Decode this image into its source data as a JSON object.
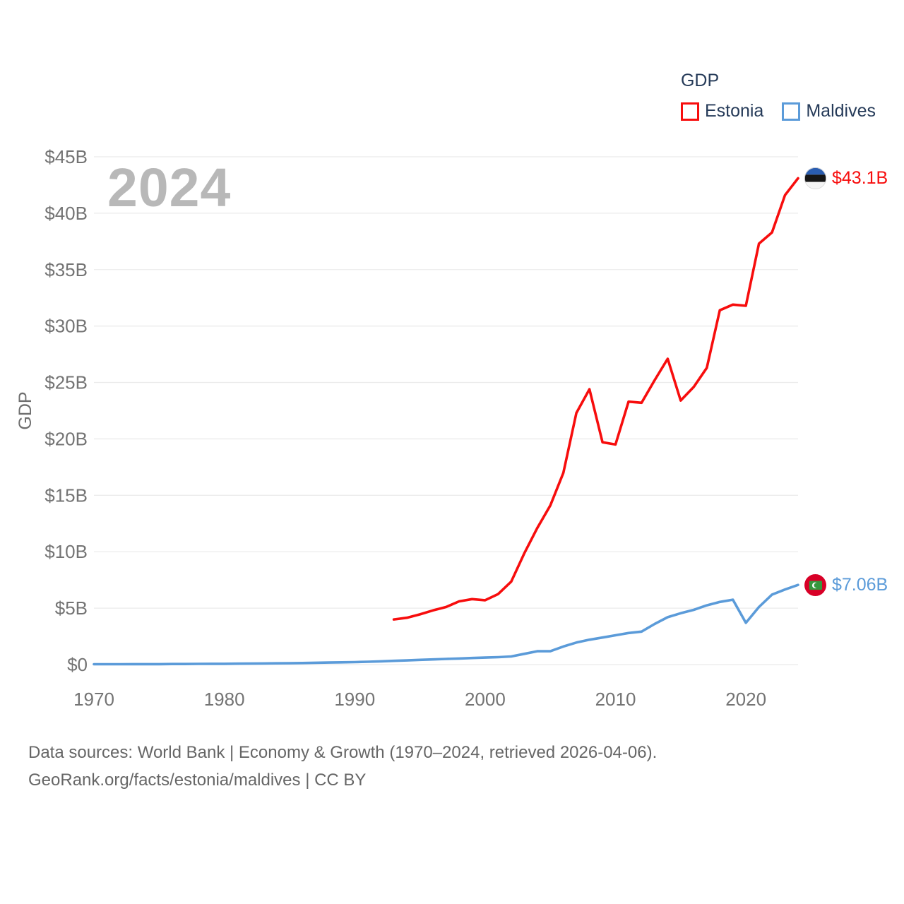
{
  "watermark": "2024",
  "legend": {
    "title": "GDP",
    "items": [
      {
        "label": "Estonia",
        "color": "#f70d0d"
      },
      {
        "label": "Maldives",
        "color": "#5b9bd9"
      }
    ]
  },
  "chart_data": {
    "type": "line",
    "title": "GDP",
    "ylabel": "GDP",
    "xlabel": "",
    "grid": "horizontal",
    "legend_position": "top-right",
    "x_range": [
      1970,
      2024
    ],
    "y_range": [
      0,
      45
    ],
    "y_ticks": [
      {
        "value": 0,
        "label": "$0"
      },
      {
        "value": 5,
        "label": "$5B"
      },
      {
        "value": 10,
        "label": "$10B"
      },
      {
        "value": 15,
        "label": "$15B"
      },
      {
        "value": 20,
        "label": "$20B"
      },
      {
        "value": 25,
        "label": "$25B"
      },
      {
        "value": 30,
        "label": "$30B"
      },
      {
        "value": 35,
        "label": "$35B"
      },
      {
        "value": 40,
        "label": "$40B"
      },
      {
        "value": 45,
        "label": "$45B"
      }
    ],
    "x_ticks": [
      {
        "value": 1970,
        "label": "1970"
      },
      {
        "value": 1980,
        "label": "1980"
      },
      {
        "value": 1990,
        "label": "1990"
      },
      {
        "value": 2000,
        "label": "2000"
      },
      {
        "value": 2010,
        "label": "2010"
      },
      {
        "value": 2020,
        "label": "2020"
      }
    ],
    "series": [
      {
        "name": "Estonia",
        "color": "#f70d0d",
        "end_label": "$43.1B",
        "flag_icon": "estonia-flag",
        "x": [
          1993,
          1994,
          1995,
          1996,
          1997,
          1998,
          1999,
          2000,
          2001,
          2002,
          2003,
          2004,
          2005,
          2006,
          2007,
          2008,
          2009,
          2010,
          2011,
          2012,
          2013,
          2014,
          2015,
          2016,
          2017,
          2018,
          2019,
          2020,
          2021,
          2022,
          2023,
          2024
        ],
        "values": [
          4.0,
          4.15,
          4.45,
          4.8,
          5.1,
          5.6,
          5.8,
          5.7,
          6.25,
          7.35,
          9.85,
          12.1,
          14.1,
          17.0,
          22.3,
          24.4,
          19.7,
          19.5,
          23.3,
          23.2,
          25.2,
          27.1,
          23.4,
          24.6,
          26.3,
          31.4,
          31.9,
          31.8,
          37.3,
          38.3,
          41.6,
          43.1
        ]
      },
      {
        "name": "Maldives",
        "color": "#5b9bd9",
        "end_label": "$7.06B",
        "flag_icon": "maldives-flag",
        "x": [
          1970,
          1971,
          1972,
          1973,
          1974,
          1975,
          1976,
          1977,
          1978,
          1979,
          1980,
          1981,
          1982,
          1983,
          1984,
          1985,
          1986,
          1987,
          1988,
          1989,
          1990,
          1991,
          1992,
          1993,
          1994,
          1995,
          1996,
          1997,
          1998,
          1999,
          2000,
          2001,
          2002,
          2003,
          2004,
          2005,
          2006,
          2007,
          2008,
          2009,
          2010,
          2011,
          2012,
          2013,
          2014,
          2015,
          2016,
          2017,
          2018,
          2019,
          2020,
          2021,
          2022,
          2023,
          2024
        ],
        "values": [
          0.03,
          0.03,
          0.03,
          0.04,
          0.04,
          0.04,
          0.05,
          0.05,
          0.06,
          0.07,
          0.07,
          0.08,
          0.09,
          0.1,
          0.11,
          0.12,
          0.14,
          0.16,
          0.18,
          0.2,
          0.22,
          0.25,
          0.29,
          0.33,
          0.37,
          0.42,
          0.46,
          0.5,
          0.54,
          0.58,
          0.62,
          0.66,
          0.72,
          0.95,
          1.18,
          1.18,
          1.6,
          1.95,
          2.2,
          2.4,
          2.6,
          2.8,
          2.92,
          3.6,
          4.2,
          4.55,
          4.85,
          5.25,
          5.55,
          5.75,
          3.7,
          5.1,
          6.2,
          6.65,
          7.06
        ]
      }
    ]
  },
  "footer": {
    "line1": "Data sources: World Bank | Economy & Growth (1970–2024, retrieved 2026-04-06).",
    "line2": "GeoRank.org/facts/estonia/maldives | CC BY"
  }
}
